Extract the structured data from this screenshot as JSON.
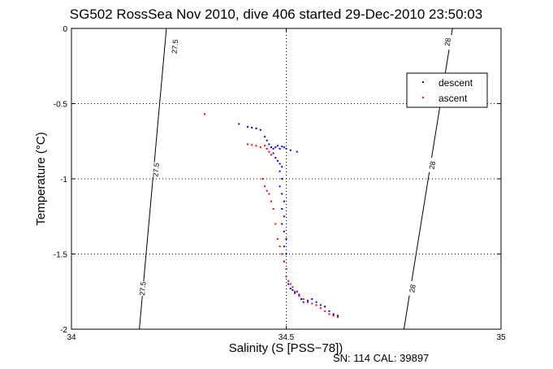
{
  "chart_data": {
    "type": "scatter",
    "title": "SG502 RossSea Nov 2010, dive 406 started 29-Dec-2010 23:50:03",
    "xlabel": "Salinity (S [PSS−78])",
    "ylabel": "Temperature (°C)",
    "footer": "SN: 114  CAL: 39897",
    "xlim": [
      34,
      35
    ],
    "ylim": [
      -2,
      0
    ],
    "y_axis_reversed": true,
    "grid": true,
    "grid_style": "dotted",
    "legend_position": "top-right",
    "x_ticks": [
      {
        "value": 34,
        "label": "34"
      },
      {
        "value": 34.5,
        "label": "34.5"
      },
      {
        "value": 35,
        "label": "35"
      }
    ],
    "y_ticks": [
      {
        "value": 0,
        "label": "0"
      },
      {
        "value": -0.5,
        "label": "-0.5"
      },
      {
        "value": -1,
        "label": "-1"
      },
      {
        "value": -1.5,
        "label": "-1.5"
      },
      {
        "value": -2,
        "label": "-2"
      }
    ],
    "isopycnals": [
      {
        "label": "27.5",
        "points": [
          [
            34.221,
            0.0
          ],
          [
            34.158,
            -2.0
          ]
        ],
        "label_positions": [
          [
            34.241,
            -0.12
          ],
          [
            34.197,
            -0.94
          ],
          [
            34.166,
            -1.73
          ]
        ]
      },
      {
        "label": "28",
        "points": [
          [
            34.887,
            0.0
          ],
          [
            34.774,
            -2.0
          ]
        ],
        "label_positions": [
          [
            34.876,
            -0.09
          ],
          [
            34.84,
            -0.91
          ],
          [
            34.794,
            -1.73
          ]
        ]
      }
    ],
    "series": [
      {
        "name": "descent",
        "color": "#0000ff",
        "points": [
          [
            34.39,
            -0.635
          ],
          [
            34.41,
            -0.655
          ],
          [
            34.42,
            -0.66
          ],
          [
            34.43,
            -0.665
          ],
          [
            34.44,
            -0.675
          ],
          [
            34.45,
            -0.72
          ],
          [
            34.455,
            -0.745
          ],
          [
            34.46,
            -0.77
          ],
          [
            34.465,
            -0.79
          ],
          [
            34.47,
            -0.8
          ],
          [
            34.475,
            -0.79
          ],
          [
            34.48,
            -0.78
          ],
          [
            34.485,
            -0.8
          ],
          [
            34.49,
            -0.785
          ],
          [
            34.495,
            -0.79
          ],
          [
            34.5,
            -0.8
          ],
          [
            34.51,
            -0.81
          ],
          [
            34.525,
            -0.82
          ],
          [
            34.47,
            -0.83
          ],
          [
            34.475,
            -0.86
          ],
          [
            34.48,
            -0.88
          ],
          [
            34.485,
            -0.9
          ],
          [
            34.49,
            -0.92
          ],
          [
            34.485,
            -0.95
          ],
          [
            34.49,
            -1.0
          ],
          [
            34.485,
            -1.05
          ],
          [
            34.49,
            -1.1
          ],
          [
            34.495,
            -1.15
          ],
          [
            34.49,
            -1.2
          ],
          [
            34.495,
            -1.25
          ],
          [
            34.49,
            -1.3
          ],
          [
            34.495,
            -1.35
          ],
          [
            34.5,
            -1.4
          ],
          [
            34.495,
            -1.45
          ],
          [
            34.5,
            -1.5
          ],
          [
            34.495,
            -1.55
          ],
          [
            34.5,
            -1.6
          ],
          [
            34.5,
            -1.65
          ],
          [
            34.505,
            -1.7
          ],
          [
            34.51,
            -1.73
          ],
          [
            34.515,
            -1.74
          ],
          [
            34.52,
            -1.76
          ],
          [
            34.525,
            -1.75
          ],
          [
            34.53,
            -1.77
          ],
          [
            34.535,
            -1.8
          ],
          [
            34.54,
            -1.82
          ],
          [
            34.55,
            -1.81
          ],
          [
            34.56,
            -1.8
          ],
          [
            34.57,
            -1.82
          ],
          [
            34.58,
            -1.84
          ],
          [
            34.59,
            -1.85
          ],
          [
            34.6,
            -1.88
          ],
          [
            34.61,
            -1.9
          ],
          [
            34.62,
            -1.91
          ]
        ]
      },
      {
        "name": "ascent",
        "color": "#ff0000",
        "points": [
          [
            34.31,
            -0.57
          ],
          [
            34.41,
            -0.77
          ],
          [
            34.42,
            -0.775
          ],
          [
            34.43,
            -0.78
          ],
          [
            34.44,
            -0.79
          ],
          [
            34.45,
            -0.78
          ],
          [
            34.455,
            -0.8
          ],
          [
            34.46,
            -0.82
          ],
          [
            34.465,
            -0.84
          ],
          [
            34.445,
            -1.0
          ],
          [
            34.45,
            -1.05
          ],
          [
            34.455,
            -1.08
          ],
          [
            34.46,
            -1.1
          ],
          [
            34.465,
            -1.15
          ],
          [
            34.47,
            -1.2
          ],
          [
            34.475,
            -1.3
          ],
          [
            34.48,
            -1.4
          ],
          [
            34.485,
            -1.45
          ],
          [
            34.49,
            -1.5
          ],
          [
            34.495,
            -1.55
          ],
          [
            34.5,
            -1.6
          ],
          [
            34.5,
            -1.65
          ],
          [
            34.505,
            -1.68
          ],
          [
            34.51,
            -1.7
          ],
          [
            34.515,
            -1.72
          ],
          [
            34.52,
            -1.75
          ],
          [
            34.53,
            -1.78
          ],
          [
            34.54,
            -1.8
          ],
          [
            34.55,
            -1.82
          ],
          [
            34.56,
            -1.83
          ],
          [
            34.57,
            -1.84
          ],
          [
            34.58,
            -1.86
          ],
          [
            34.59,
            -1.88
          ],
          [
            34.6,
            -1.9
          ],
          [
            34.61,
            -1.91
          ],
          [
            34.62,
            -1.92
          ]
        ]
      }
    ]
  }
}
